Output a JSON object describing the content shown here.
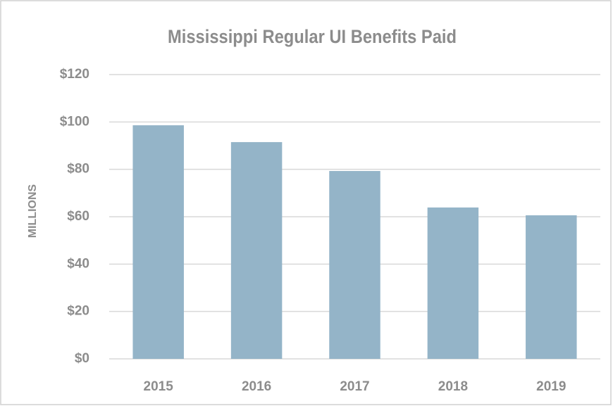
{
  "chart_data": {
    "type": "bar",
    "title": "Mississippi Regular UI Benefits Paid",
    "y_label": "MILLIONS",
    "categories": [
      "2015",
      "2016",
      "2017",
      "2018",
      "2019"
    ],
    "values": [
      98.6,
      91.5,
      79.3,
      63.9,
      60.6
    ],
    "color": "#94b4c8",
    "ylim": [
      0,
      120
    ],
    "yticks": [
      {
        "value": 0,
        "label": "$0"
      },
      {
        "value": 20,
        "label": "$20"
      },
      {
        "value": 40,
        "label": "$40"
      },
      {
        "value": 60,
        "label": "$60"
      },
      {
        "value": 80,
        "label": "$80"
      },
      {
        "value": 100,
        "label": "$100"
      },
      {
        "value": 120,
        "label": "$120"
      }
    ],
    "grid": true
  }
}
